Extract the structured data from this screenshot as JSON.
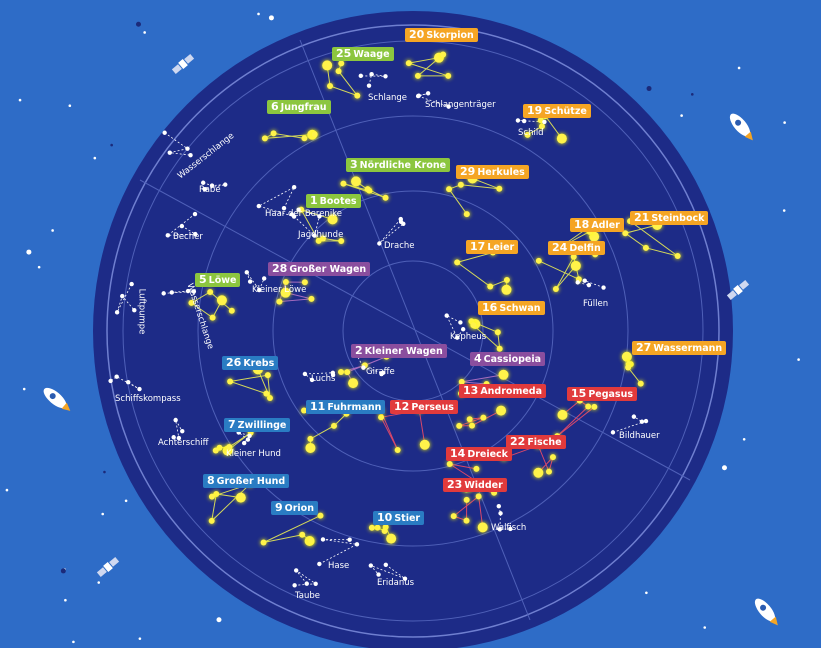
{
  "colors": {
    "background": "#2e6cc7",
    "disc": "#1d2b87",
    "green": "#8cc63f",
    "orange": "#f5a524",
    "purple": "#8a4e9e",
    "blue": "#2a7cc3",
    "red": "#e13a3c",
    "star": "#fff34a"
  },
  "constellations": [
    {
      "num": "20",
      "name": "Skorpion",
      "color": "orange"
    },
    {
      "num": "25",
      "name": "Waage",
      "color": "green"
    },
    {
      "num": "6",
      "name": "Jungfrau",
      "color": "green"
    },
    {
      "num": "3",
      "name": "Nördliche Krone",
      "color": "green"
    },
    {
      "num": "1",
      "name": "Bootes",
      "color": "green"
    },
    {
      "num": "29",
      "name": "Herkules",
      "color": "orange"
    },
    {
      "num": "19",
      "name": "Schütze",
      "color": "orange"
    },
    {
      "num": "18",
      "name": "Adler",
      "color": "orange"
    },
    {
      "num": "21",
      "name": "Steinbock",
      "color": "orange"
    },
    {
      "num": "17",
      "name": "Leier",
      "color": "orange"
    },
    {
      "num": "24",
      "name": "Delfin",
      "color": "orange"
    },
    {
      "num": "16",
      "name": "Schwan",
      "color": "orange"
    },
    {
      "num": "27",
      "name": "Wassermann",
      "color": "orange"
    },
    {
      "num": "28",
      "name": "Großer Wagen",
      "color": "purple"
    },
    {
      "num": "5",
      "name": "Löwe",
      "color": "green"
    },
    {
      "num": "2",
      "name": "Kleiner Wagen",
      "color": "purple"
    },
    {
      "num": "4",
      "name": "Cassiopeia",
      "color": "purple"
    },
    {
      "num": "26",
      "name": "Krebs",
      "color": "blue"
    },
    {
      "num": "13",
      "name": "Andromeda",
      "color": "red"
    },
    {
      "num": "15",
      "name": "Pegasus",
      "color": "red"
    },
    {
      "num": "11",
      "name": "Fuhrmann",
      "color": "blue"
    },
    {
      "num": "12",
      "name": "Perseus",
      "color": "red"
    },
    {
      "num": "7",
      "name": "Zwillinge",
      "color": "blue"
    },
    {
      "num": "22",
      "name": "Fische",
      "color": "red"
    },
    {
      "num": "14",
      "name": "Dreieck",
      "color": "red"
    },
    {
      "num": "8",
      "name": "Großer Hund",
      "color": "blue"
    },
    {
      "num": "23",
      "name": "Widder",
      "color": "red"
    },
    {
      "num": "9",
      "name": "Orion",
      "color": "blue"
    },
    {
      "num": "10",
      "name": "Stier",
      "color": "blue"
    }
  ],
  "other_constellations": [
    "Schlange",
    "Schlangenträger",
    "Schild",
    "Wasserschlange",
    "Rabe",
    "Haar der Berenike",
    "Jagdhunde",
    "Becher",
    "Drache",
    "Kleiner Löwe",
    "Füllen",
    "Luftpumpe",
    "Wasserschlange",
    "Kepheus",
    "Luchs",
    "Giraffe",
    "Schiffskompass",
    "Achterschiff",
    "Kleiner Hund",
    "Bildhauer",
    "Walfisch",
    "Hase",
    "Eridanus",
    "Taube"
  ],
  "decorations": [
    "rocket-icon",
    "rocket-icon",
    "rocket-icon",
    "satellite-icon",
    "satellite-icon",
    "satellite-icon"
  ]
}
